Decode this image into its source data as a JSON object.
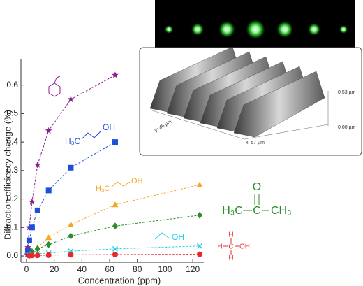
{
  "chart_data": {
    "type": "scatter",
    "x_label": "Concentration (ppm)",
    "y_label": "Diffraction efficiency change (%)",
    "xlim": [
      -4,
      128
    ],
    "ylim": [
      -0.022,
      0.69
    ],
    "xticks": [
      0,
      20,
      40,
      60,
      80,
      100,
      120
    ],
    "yticks": [
      {
        "value": 0,
        "label": "0.0"
      },
      0.1,
      0.2,
      0.3,
      0.4,
      0.5,
      0.6
    ],
    "series": [
      {
        "color": "#8b1f8b",
        "marker": "star",
        "x": [
          0.5,
          1,
          2,
          4,
          8,
          16,
          32,
          64
        ],
        "values": [
          0.005,
          0.03,
          0.1,
          0.19,
          0.32,
          0.44,
          0.55,
          0.635
        ]
      },
      {
        "color": "#1f4fd8",
        "marker": "square",
        "x": [
          1,
          2,
          4,
          8,
          16,
          32,
          64
        ],
        "values": [
          0.02,
          0.055,
          0.1,
          0.16,
          0.23,
          0.31,
          0.4
        ]
      },
      {
        "color": "#f5a623",
        "marker": "triangle",
        "x": [
          2,
          4,
          8,
          16,
          32,
          64,
          125
        ],
        "values": [
          0.005,
          0.01,
          0.03,
          0.065,
          0.11,
          0.18,
          0.25
        ]
      },
      {
        "color": "#2e8b2e",
        "marker": "diamond",
        "x": [
          2,
          4,
          8,
          16,
          32,
          64,
          125
        ],
        "values": [
          0.005,
          0.015,
          0.025,
          0.04,
          0.07,
          0.105,
          0.143
        ]
      },
      {
        "color": "#22d3e8",
        "marker": "x",
        "x": [
          2,
          4,
          8,
          16,
          32,
          64,
          125
        ],
        "values": [
          0.003,
          0.005,
          0.008,
          0.01,
          0.017,
          0.025,
          0.035
        ]
      },
      {
        "color": "#e8282a",
        "marker": "circle",
        "x": [
          2,
          4,
          8,
          16,
          32,
          64,
          125
        ],
        "values": [
          0.001,
          0.002,
          0.002,
          0.003,
          0.004,
          0.005,
          0.006
        ]
      }
    ],
    "molecules": {
      "butanol": [
        "H₃C",
        "OH"
      ],
      "propanol": [
        "H₃C",
        "OH"
      ],
      "acetone": [
        "O",
        "H₃C",
        "C",
        "CH₃"
      ],
      "ethanol": [
        "OH"
      ],
      "methanol": [
        "H",
        "C",
        "OH",
        "H",
        "H"
      ]
    },
    "inset": {
      "z_top": "0.53 µm",
      "z_bottom": "0.00 µm",
      "x_size": "x: 57 µm",
      "y_size": "y: 46 µm"
    }
  }
}
